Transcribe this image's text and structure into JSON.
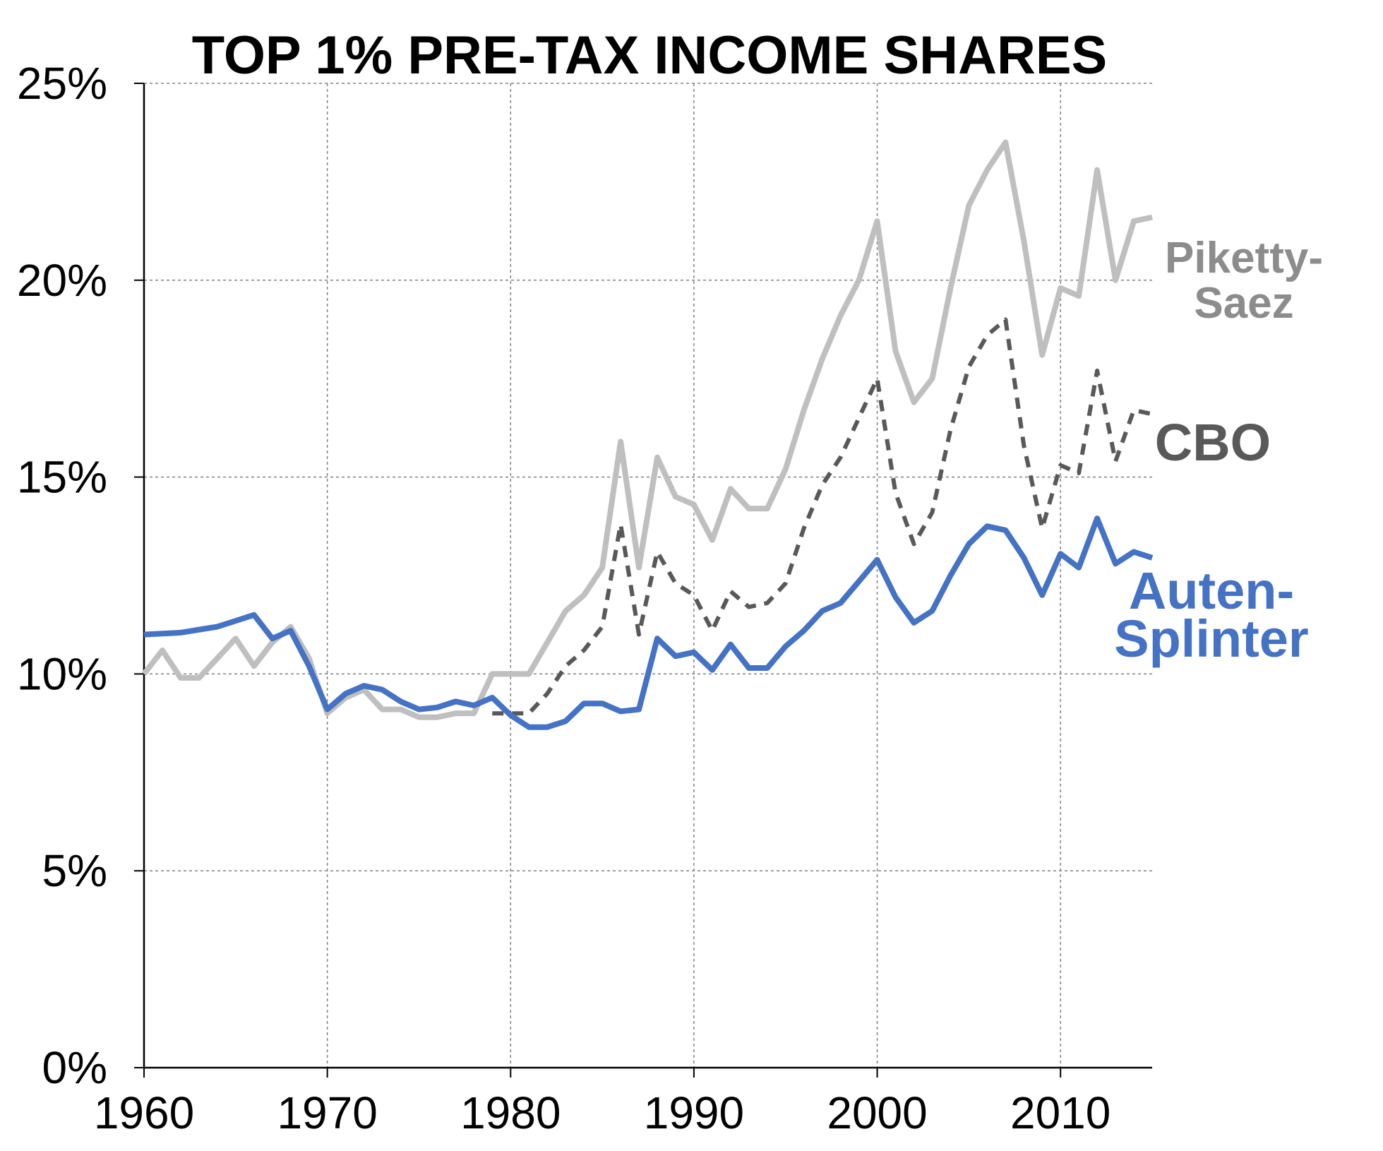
{
  "chart_data": {
    "type": "line",
    "title": "TOP 1% PRE-TAX INCOME SHARES",
    "xlabel": "",
    "ylabel": "",
    "xlim": [
      1960,
      2015
    ],
    "ylim": [
      0,
      25
    ],
    "x_ticks": [
      1960,
      1970,
      1980,
      1990,
      2000,
      2010
    ],
    "x_tick_labels": [
      "1960",
      "1970",
      "1980",
      "1990",
      "2000",
      "2010"
    ],
    "y_ticks": [
      0,
      5,
      10,
      15,
      20,
      25
    ],
    "y_tick_labels": [
      "0%",
      "5%",
      "10%",
      "15%",
      "20%",
      "25%"
    ],
    "grid": true,
    "legend": "labels at right end of each line",
    "series": [
      {
        "name": "Piketty-Saez",
        "label_lines": [
          "Piketty-",
          "Saez"
        ],
        "color": "#bfbfbf",
        "label_color": "#8c8c8c",
        "style": "solid",
        "x": [
          1960,
          1961,
          1962,
          1963,
          1964,
          1965,
          1966,
          1967,
          1968,
          1969,
          1970,
          1971,
          1972,
          1973,
          1974,
          1975,
          1976,
          1977,
          1978,
          1979,
          1980,
          1981,
          1982,
          1983,
          1984,
          1985,
          1986,
          1987,
          1988,
          1989,
          1990,
          1991,
          1992,
          1993,
          1994,
          1995,
          1996,
          1997,
          1998,
          1999,
          2000,
          2001,
          2002,
          2003,
          2004,
          2005,
          2006,
          2007,
          2008,
          2009,
          2010,
          2011,
          2012,
          2013,
          2014,
          2015
        ],
        "values": [
          10.0,
          10.6,
          9.9,
          9.9,
          10.4,
          10.9,
          10.2,
          10.8,
          11.2,
          10.4,
          9.0,
          9.4,
          9.6,
          9.1,
          9.1,
          8.9,
          8.9,
          9.0,
          9.0,
          10.0,
          10.0,
          10.0,
          10.8,
          11.6,
          12.0,
          12.7,
          15.9,
          12.7,
          15.5,
          14.5,
          14.3,
          13.4,
          14.7,
          14.2,
          14.2,
          15.2,
          16.7,
          18.0,
          19.1,
          20.0,
          21.5,
          18.2,
          16.9,
          17.5,
          19.8,
          21.9,
          22.8,
          23.5,
          21.0,
          18.1,
          19.8,
          19.6,
          22.8,
          20.0,
          21.5,
          21.6
        ]
      },
      {
        "name": "CBO",
        "label_lines": [
          "CBO"
        ],
        "color": "#595959",
        "label_color": "#595959",
        "style": "dashed",
        "x": [
          1979,
          1980,
          1981,
          1982,
          1983,
          1984,
          1985,
          1986,
          1987,
          1988,
          1989,
          1990,
          1991,
          1992,
          1993,
          1994,
          1995,
          1996,
          1997,
          1998,
          1999,
          2000,
          2001,
          2002,
          2003,
          2004,
          2005,
          2006,
          2007,
          2008,
          2009,
          2010,
          2011,
          2012,
          2013,
          2014,
          2015
        ],
        "values": [
          9.0,
          9.0,
          9.0,
          9.5,
          10.2,
          10.6,
          11.2,
          13.8,
          11.0,
          13.1,
          12.3,
          12.0,
          11.1,
          12.1,
          11.7,
          11.8,
          12.3,
          13.7,
          14.8,
          15.5,
          16.5,
          17.5,
          14.6,
          13.3,
          14.1,
          16.2,
          17.8,
          18.6,
          19.0,
          15.8,
          13.7,
          15.3,
          15.1,
          17.7,
          15.4,
          16.7,
          16.6
        ]
      },
      {
        "name": "Auten-Splinter",
        "label_lines": [
          "Auten-",
          "Splinter"
        ],
        "color": "#4472c4",
        "label_color": "#4472c4",
        "style": "solid",
        "x": [
          1960,
          1962,
          1964,
          1966,
          1967,
          1968,
          1969,
          1970,
          1971,
          1972,
          1973,
          1974,
          1975,
          1976,
          1977,
          1978,
          1979,
          1980,
          1981,
          1982,
          1983,
          1984,
          1985,
          1986,
          1987,
          1988,
          1989,
          1990,
          1991,
          1992,
          1993,
          1994,
          1995,
          1996,
          1997,
          1998,
          1999,
          2000,
          2001,
          2002,
          2003,
          2004,
          2005,
          2006,
          2007,
          2008,
          2009,
          2010,
          2011,
          2012,
          2013,
          2014,
          2015
        ],
        "values": [
          11.0,
          11.05,
          11.2,
          11.5,
          10.9,
          11.1,
          10.2,
          9.1,
          9.5,
          9.7,
          9.6,
          9.3,
          9.1,
          9.15,
          9.3,
          9.2,
          9.4,
          8.95,
          8.65,
          8.65,
          8.8,
          9.25,
          9.25,
          9.05,
          9.1,
          10.9,
          10.45,
          10.55,
          10.1,
          10.75,
          10.15,
          10.15,
          10.7,
          11.1,
          11.6,
          11.8,
          12.35,
          12.9,
          11.95,
          11.3,
          11.6,
          12.5,
          13.3,
          13.75,
          13.65,
          12.95,
          12.0,
          13.05,
          12.7,
          13.95,
          12.8,
          13.1,
          12.95
        ]
      }
    ]
  }
}
